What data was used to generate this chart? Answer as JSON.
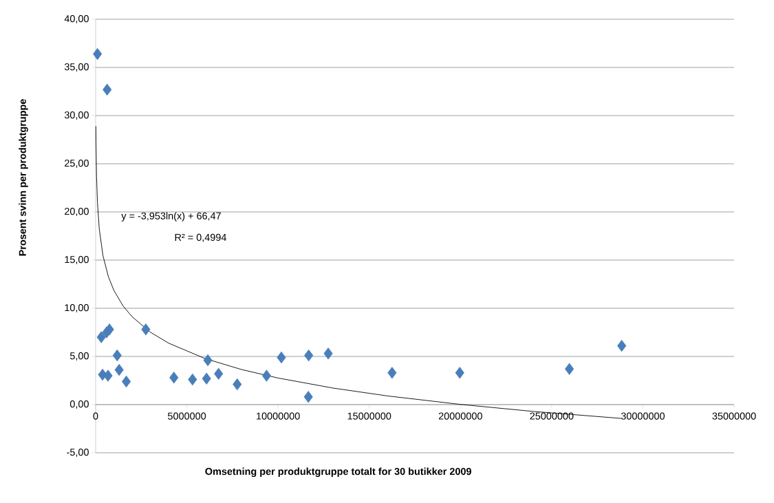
{
  "chart_data": {
    "type": "scatter",
    "xlabel": "Omsetning per produktgruppe totalt for 30 butikker 2009",
    "ylabel": "Prosent svinn per produktgruppe",
    "annotations": [
      "y = -3,953ln(x) + 66,47",
      "R² = 0,4994"
    ],
    "series": [
      {
        "color": "#4a7ebb",
        "marker": "diamond",
        "x": [
          100000,
          630000,
          310000,
          600000,
          760000,
          1180000,
          1290000,
          380000,
          680000,
          1680000,
          2750000,
          4290000,
          5310000,
          6080000,
          6150000,
          6740000,
          7760000,
          9370000,
          10180000,
          11680000,
          11660000,
          12750000,
          16250000,
          19960000,
          25970000,
          28840000
        ],
        "values": [
          36.4,
          32.7,
          7.0,
          7.5,
          7.8,
          5.1,
          3.6,
          3.1,
          3.0,
          2.4,
          7.8,
          2.8,
          2.6,
          2.7,
          4.6,
          3.2,
          2.1,
          3.0,
          4.9,
          5.1,
          0.8,
          5.3,
          3.3,
          3.3,
          3.7,
          6.1
        ]
      },
      {
        "type": "line",
        "color": "#000000",
        "marker": "none",
        "x": [
          13400,
          20000,
          50000,
          100000,
          200000,
          400000,
          700000,
          1000000,
          1500000,
          2000000,
          3000000,
          4000000,
          6000000,
          8000000,
          10000000,
          13000000,
          16000000,
          20000000,
          24000000,
          28800000
        ],
        "values": [
          28.9,
          27.32,
          23.7,
          20.96,
          18.22,
          15.48,
          13.27,
          11.86,
          10.25,
          9.12,
          7.52,
          6.38,
          4.78,
          3.64,
          2.76,
          1.72,
          0.9,
          0.02,
          -0.71,
          -1.43
        ]
      }
    ],
    "xlim": [
      0,
      35000000
    ],
    "xticks": [
      0,
      5000000,
      10000000,
      15000000,
      20000000,
      25000000,
      30000000,
      35000000
    ],
    "ylim": [
      -5,
      40
    ],
    "yticks": [
      {
        "value": -5,
        "label": "-5,00"
      },
      {
        "value": 0,
        "label": "0,00"
      },
      {
        "value": 5,
        "label": "5,00"
      },
      {
        "value": 10,
        "label": "10,00"
      },
      {
        "value": 15,
        "label": "15,00"
      },
      {
        "value": 20,
        "label": "20,00"
      },
      {
        "value": 25,
        "label": "25,00"
      },
      {
        "value": 30,
        "label": "30,00"
      },
      {
        "value": 35,
        "label": "35,00"
      },
      {
        "value": 40,
        "label": "40,00"
      }
    ],
    "grid": "y"
  }
}
